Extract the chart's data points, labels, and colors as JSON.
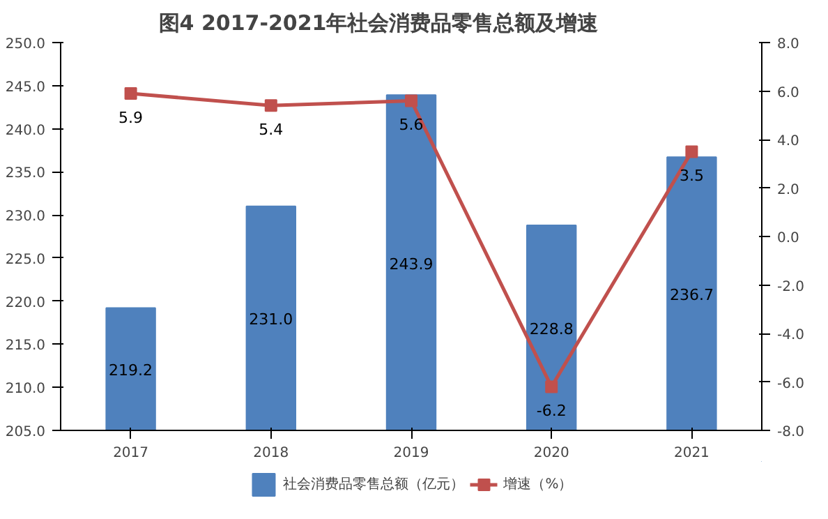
{
  "chart_data": {
    "type": "bar",
    "title": "图4          2017-2021年社会消费品零售总额及增速",
    "categories": [
      "2017",
      "2018",
      "2019",
      "2020",
      "2021"
    ],
    "series": [
      {
        "name": "社会消费品零售总额（亿元）",
        "color": "#4f81bd",
        "values": [
          219.2,
          231.0,
          243.9,
          228.8,
          236.7
        ],
        "value_labels": [
          "219.2",
          "231.0",
          "243.9",
          "228.8",
          "236.7"
        ]
      },
      {
        "name": "增速（%）",
        "type": "line",
        "axis": "y2",
        "color": "#c0504d",
        "values": [
          5.9,
          5.4,
          5.6,
          -6.2,
          3.5
        ],
        "value_labels": [
          "5.9",
          "5.4",
          "5.6",
          "-6.2",
          "3.5"
        ],
        "marker": "square"
      }
    ],
    "ylim": [
      205,
      250
    ],
    "yticks": [
      {
        "value": 205,
        "label": "205.0"
      },
      {
        "value": 210,
        "label": "210.0"
      },
      {
        "value": 215,
        "label": "215.0"
      },
      {
        "value": 220,
        "label": "220.0"
      },
      {
        "value": 225,
        "label": "225.0"
      },
      {
        "value": 230,
        "label": "230.0"
      },
      {
        "value": 235,
        "label": "235.0"
      },
      {
        "value": 240,
        "label": "240.0"
      },
      {
        "value": 245,
        "label": "245.0"
      },
      {
        "value": 250,
        "label": "250.0"
      }
    ],
    "y2lim": [
      -8,
      8
    ],
    "y2ticks": [
      {
        "value": -8,
        "label": "-8.0"
      },
      {
        "value": -6,
        "label": "-6.0"
      },
      {
        "value": -4,
        "label": "-4.0"
      },
      {
        "value": -2,
        "label": "-2.0"
      },
      {
        "value": 0,
        "label": "0.0"
      },
      {
        "value": 2,
        "label": "2.0"
      },
      {
        "value": 4,
        "label": "4.0"
      },
      {
        "value": 6,
        "label": "6.0"
      },
      {
        "value": 8,
        "label": "8.0"
      }
    ],
    "legend": "bottom",
    "grid": false
  }
}
